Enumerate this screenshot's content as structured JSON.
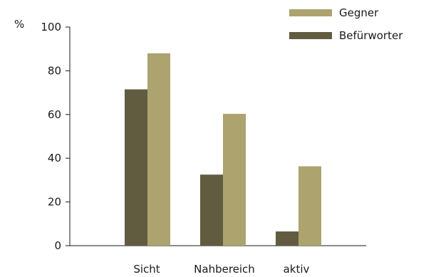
{
  "chart_data": {
    "type": "bar",
    "categories": [
      "Sicht",
      "Nahbereich",
      "aktiv"
    ],
    "series": [
      {
        "name": "Befürworter",
        "values": [
          71.5,
          32.5,
          6.5
        ],
        "color": "#615c3f"
      },
      {
        "name": "Gegner",
        "values": [
          88,
          60.3,
          36.3
        ],
        "color": "#aca36e"
      }
    ],
    "y_unit": "%",
    "ylim": [
      0,
      100
    ],
    "yticks": [
      0,
      20,
      40,
      60,
      80,
      100
    ],
    "legend_position": "top-right",
    "legend_order": [
      "Gegner",
      "Befürworter"
    ],
    "grid": false
  }
}
